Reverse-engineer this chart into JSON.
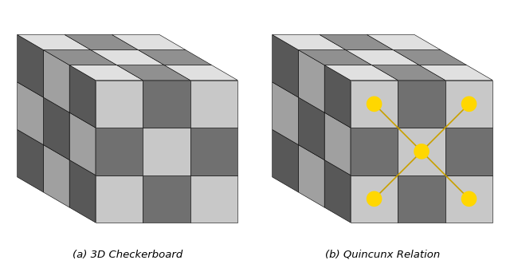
{
  "fig_width": 6.4,
  "fig_height": 3.36,
  "bg_color": "#ffffff",
  "label_a": "(a) 3D Checkerboard",
  "label_b": "(b) Quincunx Relation",
  "label_fontsize": 9.5,
  "color_front_light": "#c8c8c8",
  "color_front_dark": "#707070",
  "color_left_light": "#a0a0a0",
  "color_left_dark": "#585858",
  "color_top_light": "#e0e0e0",
  "color_top_dark": "#909090",
  "yellow": "#FFD700",
  "line_color": "#C8A000",
  "n_cells": 3,
  "edge_color": "#000000",
  "edge_lw": 0.4
}
